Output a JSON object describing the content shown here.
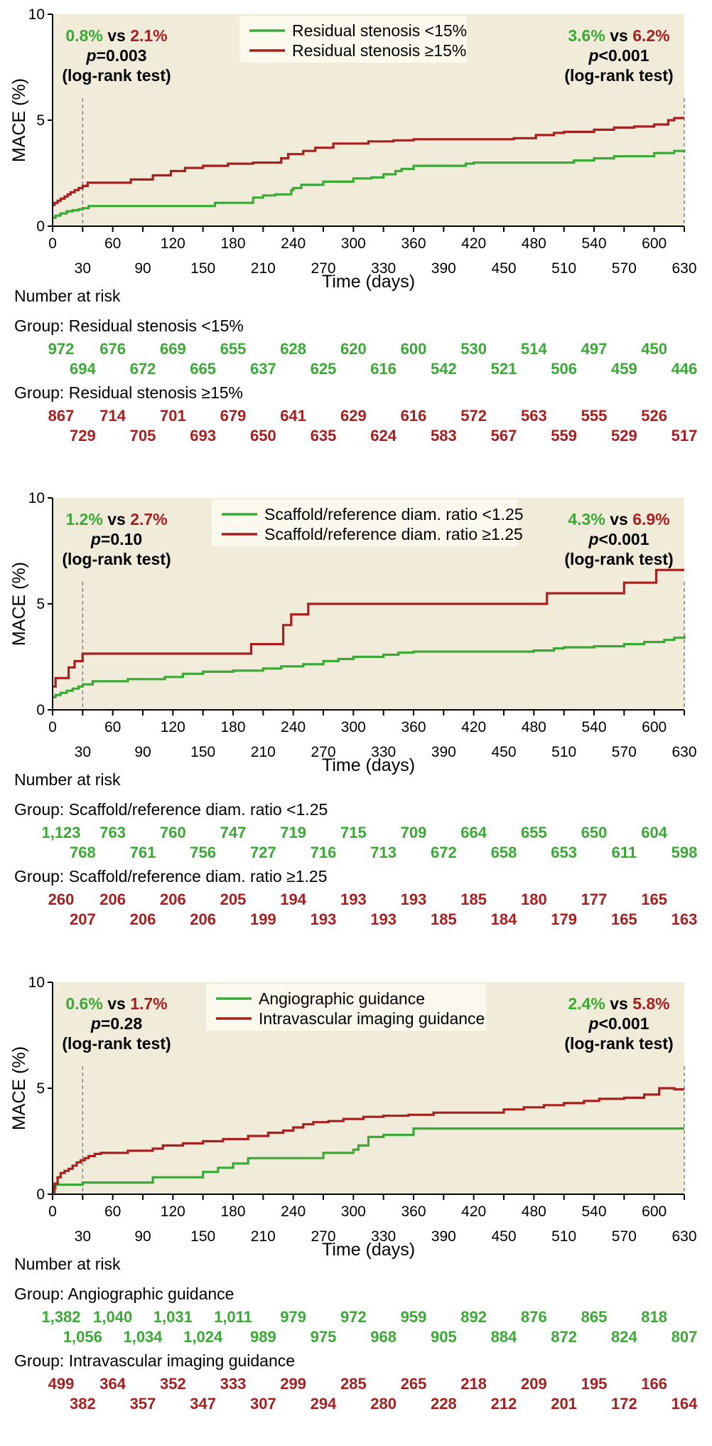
{
  "colors": {
    "green": "#3aa935",
    "red": "#a7201f",
    "plot_bg": "#f1ecd9",
    "axis": "#000000",
    "dashed": "#808080"
  },
  "axis": {
    "ylabel": "MACE (%)",
    "xlabel": "Time (days)",
    "number_at_risk_label": "Number at risk"
  },
  "chart_data": [
    {
      "type": "line",
      "xlim": [
        0,
        630
      ],
      "ylim": [
        0,
        10
      ],
      "x_ticks": [
        0,
        30,
        60,
        90,
        120,
        150,
        180,
        210,
        240,
        270,
        300,
        330,
        360,
        390,
        420,
        450,
        480,
        510,
        540,
        570,
        600,
        630
      ],
      "y_ticks": [
        0,
        5,
        10
      ],
      "legend": [
        "Residual stenosis <15%",
        "Residual stenosis ≥15%"
      ],
      "left_annotation": {
        "green_val": "0.8%",
        "vs": "vs",
        "red_val": "2.1%",
        "p_italic": "p",
        "p_rest": "=0.003",
        "test": "(log-rank test)"
      },
      "right_annotation": {
        "green_val": "3.6%",
        "vs": "vs",
        "red_val": "6.2%",
        "p_italic": "p",
        "p_rest": "<0.001",
        "test": "(log-rank test)"
      },
      "series": [
        {
          "name": "Residual stenosis <15%",
          "color": "green",
          "x": [
            0,
            3,
            8,
            14,
            20,
            26,
            30,
            36,
            60,
            90,
            120,
            150,
            162,
            180,
            200,
            210,
            222,
            238,
            240,
            248,
            270,
            300,
            318,
            330,
            342,
            348,
            360,
            390,
            412,
            420,
            450,
            480,
            510,
            520,
            540,
            560,
            600,
            620,
            630
          ],
          "y": [
            0.4,
            0.5,
            0.6,
            0.7,
            0.75,
            0.8,
            0.85,
            0.95,
            0.95,
            0.95,
            0.95,
            0.95,
            1.1,
            1.1,
            1.35,
            1.45,
            1.5,
            1.7,
            1.8,
            1.95,
            2.1,
            2.25,
            2.3,
            2.45,
            2.6,
            2.7,
            2.85,
            2.85,
            2.95,
            3.0,
            3.0,
            3.0,
            3.0,
            3.1,
            3.2,
            3.3,
            3.45,
            3.55,
            3.6
          ]
        },
        {
          "name": "Residual stenosis ≥15%",
          "color": "red",
          "x": [
            0,
            2,
            5,
            8,
            12,
            15,
            18,
            22,
            26,
            30,
            35,
            60,
            78,
            100,
            118,
            132,
            150,
            175,
            200,
            228,
            235,
            250,
            262,
            280,
            315,
            340,
            360,
            390,
            420,
            460,
            482,
            500,
            510,
            540,
            560,
            580,
            600,
            614,
            620,
            630
          ],
          "y": [
            1.0,
            1.1,
            1.2,
            1.3,
            1.4,
            1.5,
            1.6,
            1.7,
            1.8,
            1.9,
            2.05,
            2.05,
            2.2,
            2.4,
            2.6,
            2.75,
            2.85,
            2.95,
            3.0,
            3.2,
            3.4,
            3.55,
            3.7,
            3.9,
            4.0,
            4.05,
            4.1,
            4.1,
            4.1,
            4.15,
            4.3,
            4.4,
            4.45,
            4.55,
            4.65,
            4.7,
            4.8,
            5.0,
            5.1,
            5.1
          ]
        }
      ],
      "risk": {
        "groups": [
          {
            "label": "Group: Residual stenosis <15%",
            "color": "green",
            "row1": [
              "972",
              "676",
              "669",
              "655",
              "628",
              "620",
              "600",
              "530",
              "514",
              "497",
              "450"
            ],
            "row2": [
              "694",
              "672",
              "665",
              "637",
              "625",
              "616",
              "542",
              "521",
              "506",
              "459",
              "446"
            ]
          },
          {
            "label": "Group: Residual stenosis ≥15%",
            "color": "red",
            "row1": [
              "867",
              "714",
              "701",
              "679",
              "641",
              "629",
              "616",
              "572",
              "563",
              "555",
              "526"
            ],
            "row2": [
              "729",
              "705",
              "693",
              "650",
              "635",
              "624",
              "583",
              "567",
              "559",
              "529",
              "517"
            ]
          }
        ]
      }
    },
    {
      "type": "line",
      "xlim": [
        0,
        630
      ],
      "ylim": [
        0,
        10
      ],
      "x_ticks": [
        0,
        30,
        60,
        90,
        120,
        150,
        180,
        210,
        240,
        270,
        300,
        330,
        360,
        390,
        420,
        450,
        480,
        510,
        540,
        570,
        600,
        630
      ],
      "y_ticks": [
        0,
        5,
        10
      ],
      "legend": [
        "Scaffold/reference diam. ratio <1.25",
        "Scaffold/reference diam. ratio ≥1.25"
      ],
      "left_annotation": {
        "green_val": "1.2%",
        "vs": "vs",
        "red_val": "2.7%",
        "p_italic": "p",
        "p_rest": "=0.10",
        "test": "(log-rank test)"
      },
      "right_annotation": {
        "green_val": "4.3%",
        "vs": "vs",
        "red_val": "6.9%",
        "p_italic": "p",
        "p_rest": "<0.001",
        "test": "(log-rank test)"
      },
      "series": [
        {
          "name": "Scaffold/reference diam. ratio <1.25",
          "color": "green",
          "x": [
            0,
            3,
            8,
            14,
            20,
            26,
            30,
            40,
            60,
            75,
            90,
            112,
            130,
            150,
            180,
            210,
            228,
            250,
            270,
            285,
            300,
            330,
            345,
            360,
            390,
            420,
            450,
            480,
            500,
            510,
            540,
            570,
            590,
            610,
            620,
            630
          ],
          "y": [
            0.6,
            0.7,
            0.8,
            0.9,
            1.0,
            1.1,
            1.2,
            1.35,
            1.35,
            1.45,
            1.45,
            1.55,
            1.7,
            1.8,
            1.85,
            1.95,
            2.05,
            2.15,
            2.3,
            2.4,
            2.5,
            2.6,
            2.7,
            2.75,
            2.75,
            2.75,
            2.75,
            2.8,
            2.9,
            2.95,
            3.0,
            3.1,
            3.2,
            3.3,
            3.4,
            3.5
          ]
        },
        {
          "name": "Scaffold/reference diam. ratio ≥1.25",
          "color": "red",
          "x": [
            0,
            3,
            16,
            22,
            30,
            60,
            120,
            180,
            198,
            210,
            230,
            238,
            255,
            270,
            300,
            420,
            493,
            510,
            560,
            570,
            602,
            630
          ],
          "y": [
            1.1,
            1.5,
            2.0,
            2.3,
            2.65,
            2.65,
            2.65,
            2.65,
            3.1,
            3.1,
            4.0,
            4.5,
            5.0,
            5.0,
            5.0,
            5.0,
            5.5,
            5.5,
            5.5,
            6.0,
            6.6,
            6.6
          ]
        }
      ],
      "risk": {
        "groups": [
          {
            "label": "Group: Scaffold/reference diam. ratio <1.25",
            "color": "green",
            "row1": [
              "1,123",
              "763",
              "760",
              "747",
              "719",
              "715",
              "709",
              "664",
              "655",
              "650",
              "604"
            ],
            "row2": [
              "768",
              "761",
              "756",
              "727",
              "716",
              "713",
              "672",
              "658",
              "653",
              "611",
              "598"
            ]
          },
          {
            "label": "Group: Scaffold/reference diam. ratio ≥1.25",
            "color": "red",
            "row1": [
              "260",
              "206",
              "206",
              "205",
              "194",
              "193",
              "193",
              "185",
              "180",
              "177",
              "165"
            ],
            "row2": [
              "207",
              "206",
              "206",
              "199",
              "193",
              "193",
              "185",
              "184",
              "179",
              "165",
              "163"
            ]
          }
        ]
      }
    },
    {
      "type": "line",
      "xlim": [
        0,
        630
      ],
      "ylim": [
        0,
        10
      ],
      "x_ticks": [
        0,
        30,
        60,
        90,
        120,
        150,
        180,
        210,
        240,
        270,
        300,
        330,
        360,
        390,
        420,
        450,
        480,
        510,
        540,
        570,
        600,
        630
      ],
      "y_ticks": [
        0,
        5,
        10
      ],
      "legend": [
        "Angiographic guidance",
        "Intravascular imaging guidance"
      ],
      "left_annotation": {
        "green_val": "0.6%",
        "vs": "vs",
        "red_val": "1.7%",
        "p_italic": "p",
        "p_rest": "=0.28",
        "test": "(log-rank test)"
      },
      "right_annotation": {
        "green_val": "2.4%",
        "vs": "vs",
        "red_val": "5.8%",
        "p_italic": "p",
        "p_rest": "<0.001",
        "test": "(log-rank test)"
      },
      "series": [
        {
          "name": "Angiographic guidance",
          "color": "green",
          "x": [
            0,
            3,
            30,
            60,
            90,
            100,
            120,
            150,
            165,
            180,
            195,
            210,
            240,
            270,
            300,
            305,
            315,
            330,
            360,
            390,
            420,
            480,
            540,
            600,
            630
          ],
          "y": [
            0.3,
            0.45,
            0.55,
            0.55,
            0.55,
            0.8,
            0.8,
            1.05,
            1.25,
            1.45,
            1.7,
            1.7,
            1.7,
            1.95,
            2.1,
            2.3,
            2.7,
            2.8,
            3.1,
            3.1,
            3.1,
            3.1,
            3.1,
            3.1,
            3.1
          ]
        },
        {
          "name": "Intravascular imaging guidance",
          "color": "red",
          "x": [
            0,
            2,
            5,
            8,
            12,
            16,
            20,
            24,
            28,
            32,
            36,
            42,
            48,
            75,
            100,
            110,
            130,
            150,
            170,
            195,
            215,
            230,
            240,
            250,
            260,
            275,
            290,
            310,
            330,
            355,
            380,
            420,
            450,
            470,
            490,
            510,
            530,
            545,
            570,
            590,
            605,
            620,
            630
          ],
          "y": [
            0.1,
            0.5,
            0.8,
            1.0,
            1.1,
            1.2,
            1.35,
            1.5,
            1.6,
            1.7,
            1.8,
            1.9,
            1.95,
            2.05,
            2.15,
            2.3,
            2.4,
            2.5,
            2.6,
            2.75,
            2.9,
            3.0,
            3.15,
            3.3,
            3.4,
            3.45,
            3.55,
            3.65,
            3.7,
            3.75,
            3.85,
            3.85,
            4.0,
            4.1,
            4.2,
            4.3,
            4.4,
            4.5,
            4.55,
            4.7,
            5.0,
            4.95,
            4.95
          ]
        }
      ],
      "risk": {
        "groups": [
          {
            "label": "Group: Angiographic guidance",
            "color": "green",
            "row1": [
              "1,382",
              "1,040",
              "1,031",
              "1,011",
              "979",
              "972",
              "959",
              "892",
              "876",
              "865",
              "818"
            ],
            "row2": [
              "1,056",
              "1,034",
              "1,024",
              "989",
              "975",
              "968",
              "905",
              "884",
              "872",
              "824",
              "807"
            ]
          },
          {
            "label": "Group: Intravascular imaging guidance",
            "color": "red",
            "row1": [
              "499",
              "364",
              "352",
              "333",
              "299",
              "285",
              "265",
              "218",
              "209",
              "195",
              "166"
            ],
            "row2": [
              "382",
              "357",
              "347",
              "307",
              "294",
              "280",
              "228",
              "212",
              "201",
              "172",
              "164"
            ]
          }
        ]
      }
    }
  ]
}
